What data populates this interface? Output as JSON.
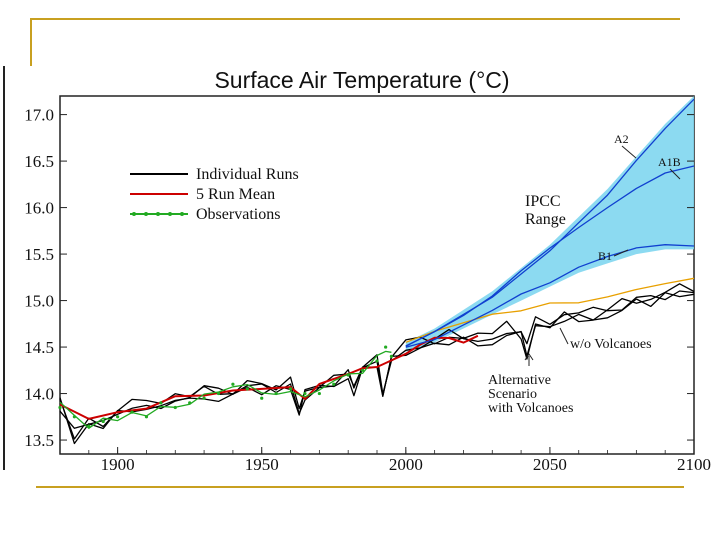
{
  "chart_data": {
    "type": "line",
    "title": "Surface Air Temperature (°C)",
    "xlabel": "",
    "ylabel": "",
    "xlim": [
      1880,
      2100
    ],
    "ylim": [
      13.35,
      17.2
    ],
    "x_ticks": [
      1900,
      1950,
      2000,
      2050,
      2100
    ],
    "y_ticks": [
      13.5,
      14.0,
      14.5,
      15.0,
      15.5,
      16.0,
      16.5,
      17.0
    ],
    "legend": {
      "position": "top-left",
      "entries": [
        {
          "label": "Individual Runs",
          "color": "#000000"
        },
        {
          "label": "5 Run Mean",
          "color": "#cc0000"
        },
        {
          "label": "Observations",
          "color": "#22aa22"
        }
      ]
    },
    "annotations": {
      "ipcc_range": [
        "IPCC",
        "Range"
      ],
      "a2": "A2",
      "a1b": "A1B",
      "b1": "B1",
      "wo_volcanoes": "w/o Volcanoes",
      "alt_scenario": [
        "Alternative",
        "Scenario",
        "with Volcanoes"
      ]
    },
    "series": [
      {
        "name": "Individual Runs",
        "color": "#000000",
        "x": [
          1880,
          1885,
          1890,
          1895,
          1900,
          1905,
          1910,
          1915,
          1920,
          1925,
          1930,
          1935,
          1940,
          1945,
          1950,
          1955,
          1960,
          1963,
          1965,
          1970,
          1975,
          1980,
          1982,
          1985,
          1990,
          1992,
          1995,
          2000,
          2005,
          2010,
          2015,
          2020,
          2025,
          2030,
          2035,
          2040,
          2042,
          2045,
          2050,
          2055,
          2060,
          2065,
          2070,
          2075,
          2080,
          2085,
          2090,
          2095,
          2100
        ],
        "y": [
          13.9,
          13.55,
          13.75,
          13.7,
          13.8,
          13.85,
          13.85,
          13.9,
          13.95,
          13.95,
          14.0,
          14.0,
          14.05,
          14.05,
          14.05,
          14.05,
          14.1,
          13.85,
          14.0,
          14.1,
          14.15,
          14.2,
          14.05,
          14.3,
          14.35,
          14.0,
          14.4,
          14.5,
          14.55,
          14.6,
          14.6,
          14.55,
          14.6,
          14.6,
          14.7,
          14.65,
          14.45,
          14.75,
          14.75,
          14.8,
          14.85,
          14.85,
          14.9,
          14.95,
          15.0,
          15.0,
          15.05,
          15.1,
          15.15
        ]
      },
      {
        "name": "5 Run Mean",
        "color": "#cc0000",
        "x": [
          1880,
          1890,
          1900,
          1910,
          1920,
          1930,
          1940,
          1950,
          1960,
          1965,
          1970,
          1980,
          1985,
          1990,
          1995,
          2000,
          2005,
          2010,
          2015,
          2020,
          2025
        ],
        "y": [
          13.9,
          13.75,
          13.8,
          13.85,
          13.95,
          14.0,
          14.05,
          14.05,
          14.05,
          13.95,
          14.1,
          14.2,
          14.25,
          14.3,
          14.35,
          14.45,
          14.55,
          14.6,
          14.6,
          14.55,
          14.6
        ]
      },
      {
        "name": "Observations",
        "color": "#22aa22",
        "x": [
          1880,
          1885,
          1890,
          1895,
          1900,
          1905,
          1910,
          1915,
          1920,
          1925,
          1930,
          1935,
          1940,
          1945,
          1950,
          1955,
          1960,
          1965,
          1970,
          1975,
          1980,
          1985,
          1990,
          1993,
          1995
        ],
        "y": [
          13.85,
          13.75,
          13.65,
          13.7,
          13.75,
          13.8,
          13.75,
          13.9,
          13.85,
          13.9,
          13.95,
          14.0,
          14.1,
          14.05,
          13.95,
          14.0,
          14.05,
          14.0,
          14.0,
          14.1,
          14.2,
          14.25,
          14.35,
          14.5,
          14.4
        ]
      },
      {
        "name": "w/o Volcanoes",
        "color": "#e8a000",
        "x": [
          2000,
          2010,
          2020,
          2030,
          2040,
          2050,
          2060,
          2070,
          2080,
          2090,
          2100
        ],
        "y": [
          14.55,
          14.65,
          14.75,
          14.85,
          14.9,
          14.95,
          15.0,
          15.05,
          15.1,
          15.2,
          15.25
        ]
      },
      {
        "name": "A2",
        "color": "#1040d0",
        "x": [
          2000,
          2010,
          2020,
          2030,
          2040,
          2050,
          2060,
          2070,
          2080,
          2090,
          2100
        ],
        "y": [
          14.5,
          14.65,
          14.85,
          15.05,
          15.3,
          15.55,
          15.85,
          16.15,
          16.5,
          16.85,
          17.15
        ]
      },
      {
        "name": "A1B",
        "color": "#1040d0",
        "x": [
          2000,
          2010,
          2020,
          2030,
          2040,
          2050,
          2060,
          2070,
          2080,
          2090,
          2100
        ],
        "y": [
          14.5,
          14.65,
          14.85,
          15.05,
          15.3,
          15.55,
          15.8,
          16.0,
          16.2,
          16.35,
          16.45
        ]
      },
      {
        "name": "B1",
        "color": "#1040d0",
        "x": [
          2000,
          2010,
          2020,
          2030,
          2040,
          2050,
          2060,
          2070,
          2080,
          2090,
          2100
        ],
        "y": [
          14.5,
          14.6,
          14.75,
          14.9,
          15.05,
          15.2,
          15.35,
          15.45,
          15.55,
          15.6,
          15.6
        ]
      }
    ],
    "range_band": {
      "name": "IPCC Range",
      "color": "#7fd6f0",
      "x": [
        2000,
        2010,
        2020,
        2030,
        2040,
        2050,
        2060,
        2070,
        2080,
        2090,
        2100
      ],
      "upper": [
        14.55,
        14.7,
        14.9,
        15.1,
        15.35,
        15.6,
        15.9,
        16.2,
        16.55,
        16.9,
        17.2
      ],
      "lower": [
        14.45,
        14.55,
        14.7,
        14.85,
        15.0,
        15.15,
        15.3,
        15.4,
        15.5,
        15.55,
        15.55
      ]
    }
  }
}
